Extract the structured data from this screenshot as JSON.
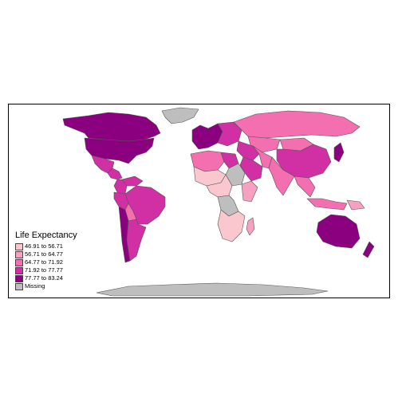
{
  "legend": {
    "title": "Life Expectancy",
    "classes": [
      {
        "label": "46.91 to 56.71",
        "color": "#fbc7ce"
      },
      {
        "label": "56.71 to 64.77",
        "color": "#f7a1c1"
      },
      {
        "label": "64.77 to 71.92",
        "color": "#f36fb0"
      },
      {
        "label": "71.92 to 77.77",
        "color": "#d12fa4"
      },
      {
        "label": "77.77 to 83.24",
        "color": "#8a007f"
      },
      {
        "label": "Missing",
        "color": "#bebebe"
      }
    ]
  },
  "regions": [
    {
      "name": "canada",
      "class": 4
    },
    {
      "name": "usa",
      "class": 4
    },
    {
      "name": "greenland",
      "class": 5
    },
    {
      "name": "mexico",
      "class": 3
    },
    {
      "name": "central-america",
      "class": 3
    },
    {
      "name": "venezuela",
      "class": 3
    },
    {
      "name": "colombia",
      "class": 3
    },
    {
      "name": "brazil",
      "class": 3
    },
    {
      "name": "peru",
      "class": 3
    },
    {
      "name": "bolivia",
      "class": 2
    },
    {
      "name": "chile",
      "class": 4
    },
    {
      "name": "argentina",
      "class": 3
    },
    {
      "name": "western-europe",
      "class": 4
    },
    {
      "name": "eastern-europe",
      "class": 3
    },
    {
      "name": "russia",
      "class": 2
    },
    {
      "name": "kazakhstan",
      "class": 2
    },
    {
      "name": "mongolia",
      "class": 2
    },
    {
      "name": "china",
      "class": 3
    },
    {
      "name": "japan",
      "class": 4
    },
    {
      "name": "middle-east",
      "class": 3
    },
    {
      "name": "arabia",
      "class": 3
    },
    {
      "name": "iran",
      "class": 2
    },
    {
      "name": "india",
      "class": 2
    },
    {
      "name": "southeast-asia",
      "class": 2
    },
    {
      "name": "indonesia",
      "class": 2
    },
    {
      "name": "papua",
      "class": 1
    },
    {
      "name": "north-africa",
      "class": 2
    },
    {
      "name": "libya",
      "class": 3
    },
    {
      "name": "sahel",
      "class": 0
    },
    {
      "name": "sudan",
      "class": 5
    },
    {
      "name": "east-africa",
      "class": 1
    },
    {
      "name": "central-africa",
      "class": 0
    },
    {
      "name": "drc",
      "class": 5
    },
    {
      "name": "southern-africa",
      "class": 0
    },
    {
      "name": "madagascar",
      "class": 1
    },
    {
      "name": "australia",
      "class": 4
    },
    {
      "name": "new-zealand",
      "class": 4
    },
    {
      "name": "antarctica",
      "class": 5
    }
  ]
}
